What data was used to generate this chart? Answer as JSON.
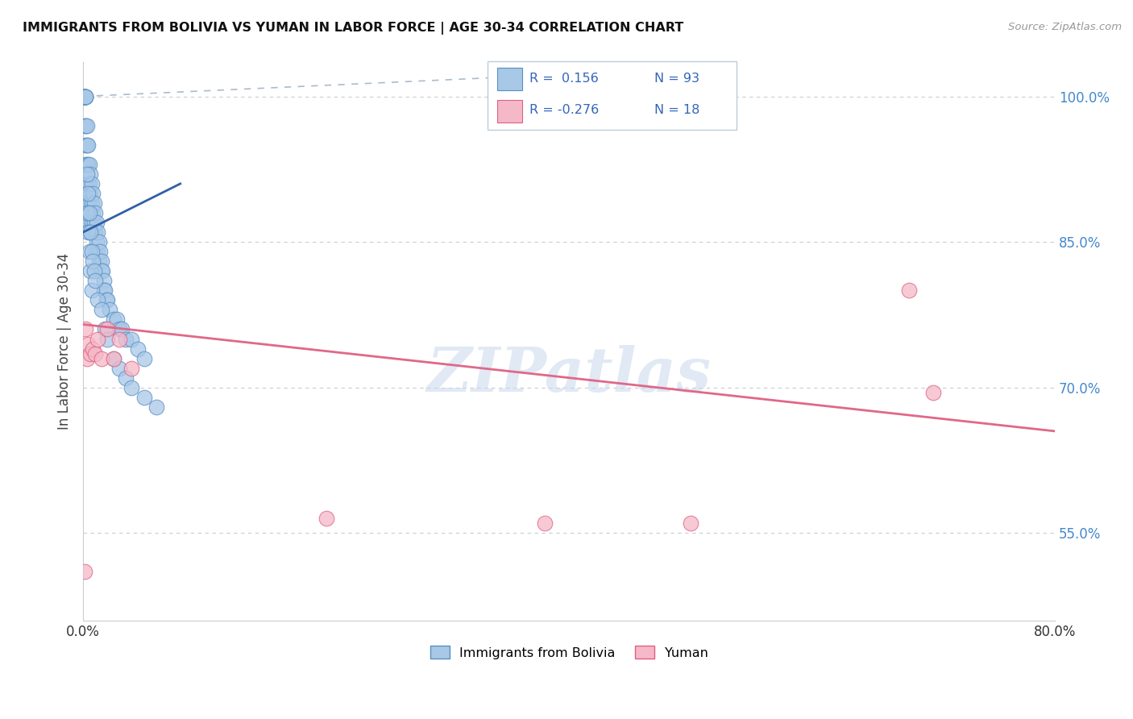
{
  "title": "IMMIGRANTS FROM BOLIVIA VS YUMAN IN LABOR FORCE | AGE 30-34 CORRELATION CHART",
  "source": "Source: ZipAtlas.com",
  "ylabel": "In Labor Force | Age 30-34",
  "xmin": 0.0,
  "xmax": 0.8,
  "ymin": 0.46,
  "ymax": 1.035,
  "yticks": [
    0.55,
    0.7,
    0.85,
    1.0
  ],
  "ytick_labels": [
    "55.0%",
    "70.0%",
    "85.0%",
    "100.0%"
  ],
  "xticks": [
    0.0,
    0.1,
    0.2,
    0.3,
    0.4,
    0.5,
    0.6,
    0.7,
    0.8
  ],
  "legend_r_bolivia": "0.156",
  "legend_n_bolivia": "93",
  "legend_r_yuman": "-0.276",
  "legend_n_yuman": "18",
  "legend_label_bolivia": "Immigrants from Bolivia",
  "legend_label_yuman": "Yuman",
  "bolivia_color": "#A8C8E8",
  "yuman_color": "#F5B8C8",
  "bolivia_edge_color": "#5A8FC0",
  "yuman_edge_color": "#E06080",
  "bolivia_trend_color": "#3060A8",
  "yuman_trend_color": "#E06888",
  "ref_line_color": "#AABBCC",
  "watermark": "ZIPatlas",
  "bolivia_x": [
    0.001,
    0.001,
    0.001,
    0.001,
    0.001,
    0.001,
    0.001,
    0.001,
    0.001,
    0.001,
    0.002,
    0.002,
    0.002,
    0.002,
    0.002,
    0.002,
    0.002,
    0.002,
    0.003,
    0.003,
    0.003,
    0.003,
    0.003,
    0.003,
    0.004,
    0.004,
    0.004,
    0.004,
    0.004,
    0.005,
    0.005,
    0.005,
    0.005,
    0.006,
    0.006,
    0.006,
    0.006,
    0.007,
    0.007,
    0.007,
    0.008,
    0.008,
    0.008,
    0.009,
    0.009,
    0.01,
    0.01,
    0.01,
    0.011,
    0.011,
    0.012,
    0.012,
    0.013,
    0.013,
    0.014,
    0.015,
    0.015,
    0.016,
    0.017,
    0.017,
    0.018,
    0.019,
    0.02,
    0.022,
    0.025,
    0.028,
    0.03,
    0.032,
    0.035,
    0.04,
    0.045,
    0.05,
    0.003,
    0.003,
    0.004,
    0.004,
    0.005,
    0.005,
    0.006,
    0.006,
    0.007,
    0.007,
    0.008,
    0.009,
    0.01,
    0.012,
    0.015,
    0.018,
    0.02,
    0.025,
    0.03,
    0.035,
    0.04,
    0.05,
    0.06
  ],
  "bolivia_y": [
    1.0,
    1.0,
    1.0,
    1.0,
    1.0,
    1.0,
    1.0,
    1.0,
    1.0,
    1.0,
    1.0,
    1.0,
    1.0,
    1.0,
    0.97,
    0.97,
    0.95,
    0.93,
    0.97,
    0.95,
    0.93,
    0.91,
    0.89,
    0.87,
    0.95,
    0.93,
    0.91,
    0.89,
    0.87,
    0.93,
    0.91,
    0.89,
    0.87,
    0.92,
    0.9,
    0.88,
    0.86,
    0.91,
    0.89,
    0.87,
    0.9,
    0.88,
    0.86,
    0.89,
    0.87,
    0.88,
    0.86,
    0.84,
    0.87,
    0.85,
    0.86,
    0.84,
    0.85,
    0.83,
    0.84,
    0.83,
    0.82,
    0.82,
    0.81,
    0.8,
    0.8,
    0.79,
    0.79,
    0.78,
    0.77,
    0.77,
    0.76,
    0.76,
    0.75,
    0.75,
    0.74,
    0.73,
    0.92,
    0.88,
    0.9,
    0.86,
    0.88,
    0.84,
    0.86,
    0.82,
    0.84,
    0.8,
    0.83,
    0.82,
    0.81,
    0.79,
    0.78,
    0.76,
    0.75,
    0.73,
    0.72,
    0.71,
    0.7,
    0.69,
    0.68
  ],
  "yuman_x": [
    0.001,
    0.002,
    0.003,
    0.004,
    0.006,
    0.008,
    0.01,
    0.012,
    0.015,
    0.02,
    0.025,
    0.03,
    0.04,
    0.2,
    0.38,
    0.5,
    0.68,
    0.7
  ],
  "yuman_y": [
    0.51,
    0.76,
    0.73,
    0.745,
    0.735,
    0.74,
    0.735,
    0.75,
    0.73,
    0.76,
    0.73,
    0.75,
    0.72,
    0.565,
    0.56,
    0.56,
    0.8,
    0.695
  ],
  "bolivia_trend_x0": 0.0,
  "bolivia_trend_x1": 0.08,
  "bolivia_trend_y0": 0.86,
  "bolivia_trend_y1": 0.91,
  "yuman_trend_x0": 0.0,
  "yuman_trend_x1": 0.8,
  "yuman_trend_y0": 0.765,
  "yuman_trend_y1": 0.655,
  "ref_line_x0": 0.0,
  "ref_line_x1": 0.35,
  "ref_line_y0": 1.0,
  "ref_line_y1": 1.02
}
